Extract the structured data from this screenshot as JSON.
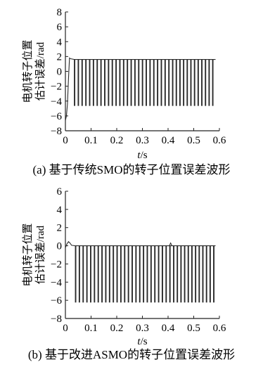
{
  "chart_data": [
    {
      "type": "line",
      "title": "",
      "caption": "(a) 基于传统SMO的转子位置误差波形",
      "ylabel_lines": [
        "电机转子位置",
        "估计误差/rad"
      ],
      "xlabel_italic": "t",
      "xlabel_unit": "/s",
      "xlim": [
        0,
        0.6
      ],
      "ylim": [
        -8,
        8
      ],
      "xticks": [
        0,
        0.1,
        0.2,
        0.3,
        0.4,
        0.5,
        0.6
      ],
      "xtick_labels": [
        "0",
        "0.1",
        "0.2",
        "0.3",
        "0.4",
        "0.5",
        "0.6"
      ],
      "yticks": [
        -8,
        -6,
        -4,
        -2,
        0,
        2,
        4,
        6,
        8
      ],
      "ytick_labels": [
        "−8",
        "−6",
        "−4",
        "−2",
        "0",
        "2",
        "4",
        "6",
        "8"
      ],
      "waveform": {
        "start": 0.015,
        "end": 0.585,
        "pulse_spacing_first": 0.0147,
        "pulse_spacing_second": 0.0142,
        "switch_time": 0.41,
        "baseline": 1.6,
        "pulse_low": -4.6,
        "transient": [
          [
            0,
            -6.6
          ],
          [
            0.004,
            -6.0
          ],
          [
            0.008,
            -4.4
          ],
          [
            0.012,
            -1.0
          ],
          [
            0.016,
            1.8
          ],
          [
            0.02,
            1.7
          ]
        ]
      },
      "series": [
        {
          "color": "#2a2a2a"
        }
      ]
    },
    {
      "type": "line",
      "title": "",
      "caption": "(b) 基于改进ASMO的转子位置误差波形",
      "ylabel_lines": [
        "电机转子位置",
        "估计误差/rad"
      ],
      "xlabel_italic": "t",
      "xlabel_unit": "/s",
      "xlim": [
        0,
        0.6
      ],
      "ylim": [
        -8,
        6
      ],
      "xticks": [
        0,
        0.1,
        0.2,
        0.3,
        0.4,
        0.5,
        0.6
      ],
      "xtick_labels": [
        "0",
        "0.1",
        "0.2",
        "0.3",
        "0.4",
        "0.5",
        "0.6"
      ],
      "yticks": [
        -8,
        -6,
        -4,
        -2,
        0,
        2,
        4,
        6
      ],
      "ytick_labels": [
        "−8",
        "−6",
        "−4",
        "−2",
        "0",
        "2",
        "4",
        "6"
      ],
      "waveform": {
        "start": 0.018,
        "end": 0.585,
        "pulse_spacing_first": 0.0147,
        "pulse_spacing_second": 0.0142,
        "switch_time": 0.41,
        "baseline": 0.0,
        "pulse_low": -6.2,
        "transient": [
          [
            0,
            -0.2
          ],
          [
            0.006,
            0.2
          ],
          [
            0.012,
            0.45
          ],
          [
            0.018,
            0.3
          ],
          [
            0.024,
            0.05
          ]
        ],
        "bump": [
          [
            0.405,
            0.0
          ],
          [
            0.41,
            0.3
          ],
          [
            0.415,
            0.0
          ]
        ]
      },
      "series": [
        {
          "color": "#2a2a2a"
        }
      ]
    }
  ]
}
